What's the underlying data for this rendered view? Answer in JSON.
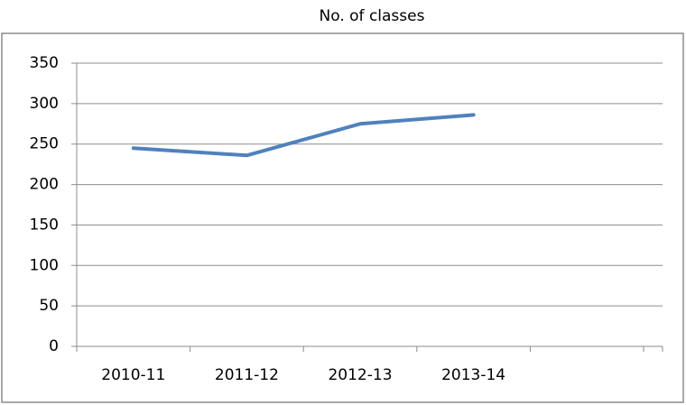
{
  "chart_data": {
    "type": "line",
    "title": "No. of classes",
    "categories": [
      "2010-11",
      "2011-12",
      "2012-13",
      "2013-14",
      null
    ],
    "series": [
      {
        "name": "No. of classes",
        "color": "#4f81bd",
        "values": [
          245,
          236,
          275,
          286,
          null
        ]
      }
    ],
    "ylim": [
      0,
      350
    ],
    "yticks": [
      0,
      50,
      100,
      150,
      200,
      250,
      300,
      350
    ],
    "grid": true
  }
}
